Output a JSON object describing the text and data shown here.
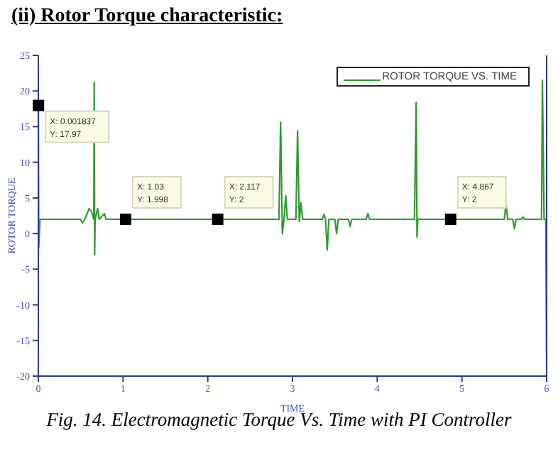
{
  "chart_data": {
    "type": "line",
    "title": "(ii) Rotor Torque characteristic:",
    "xlabel": "TIME",
    "ylabel": "ROTOR TORQUE",
    "x": [
      0,
      0.005,
      0.02,
      0.5,
      0.52,
      0.55,
      0.6,
      0.63,
      0.655,
      0.66,
      0.665,
      0.67,
      0.7,
      0.72,
      0.78,
      0.8,
      1.03,
      2.117,
      2.84,
      2.86,
      2.88,
      2.9,
      2.92,
      2.94,
      3.04,
      3.06,
      3.08,
      3.1,
      3.12,
      3.35,
      3.37,
      3.39,
      3.41,
      3.43,
      3.5,
      3.52,
      3.54,
      3.66,
      3.68,
      3.7,
      3.87,
      3.89,
      3.91,
      4.44,
      4.46,
      4.47,
      4.48,
      4.867,
      5.5,
      5.52,
      5.54,
      5.6,
      5.62,
      5.64,
      5.7,
      5.72,
      5.74,
      5.94,
      5.95,
      5.97,
      5.99,
      6
    ],
    "series": [
      {
        "name": "ROTOR TORQUE VS. TIME",
        "color": "#2e9a2e",
        "values": [
          18,
          -2,
          2,
          2,
          1.5,
          2,
          3.5,
          3,
          2,
          21.2,
          -3,
          2,
          3.5,
          2,
          2.8,
          2,
          2,
          2,
          2,
          15.6,
          0,
          2,
          5.3,
          2,
          2,
          14.4,
          1.7,
          4.3,
          2,
          2,
          2.7,
          2,
          -2.3,
          2,
          2,
          0,
          2,
          2,
          1,
          2,
          2,
          2.8,
          2,
          2,
          18.4,
          -0.5,
          2,
          2,
          2,
          4.2,
          2,
          2,
          0.7,
          2,
          2,
          2.3,
          2,
          2,
          21.5,
          2,
          2,
          -20
        ]
      }
    ],
    "xlim": [
      0,
      6
    ],
    "xticks": [
      0,
      1,
      2,
      3,
      4,
      5,
      6
    ],
    "ylim": [
      -20,
      25
    ],
    "yticks": [
      -20,
      -15,
      -10,
      -5,
      0,
      5,
      10,
      15,
      20,
      25
    ],
    "grid": false,
    "legend": "top right",
    "marker": "none",
    "line_style": "solid",
    "annotations": [
      {
        "text": "X: 0.001837\nY: 17.97",
        "x": 0.001837,
        "y": 17.97
      },
      {
        "text": "X: 1.03\nY: 1.998",
        "x": 1.03,
        "y": 1.998
      },
      {
        "text": "X: 2.117\nY: 2",
        "x": 2.117,
        "y": 2
      },
      {
        "text": "X: 4.867\nY: 2",
        "x": 4.867,
        "y": 2
      },
      "Fig. 14. Electromagnetic Torque Vs. Time with PI Controller"
    ]
  }
}
